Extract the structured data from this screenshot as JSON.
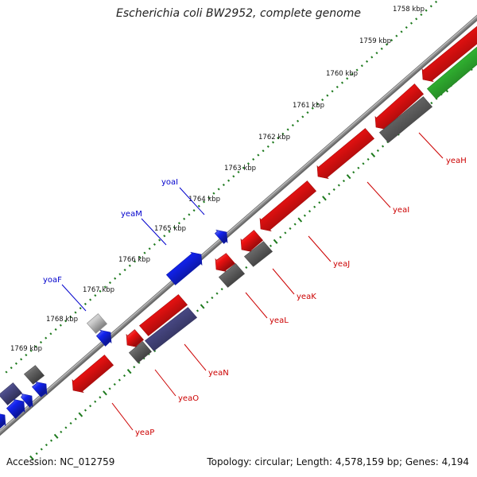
{
  "title": "Escherichia coli BW2952, complete genome",
  "accession": "Accession: NC_012759",
  "summary": "Topology: circular; Length: 4,578,159 bp; Genes: 4,194",
  "colors": {
    "backbone": "#8a8a8a",
    "ticks": "#1e7a1e",
    "red": "#ee1111",
    "grey": "#666666",
    "green": "#33bb33",
    "blue": "#1122ee",
    "navy": "#4a4a88",
    "lightgrey": "#cccccc",
    "label_red": "#cc0000",
    "label_blue": "#0000cc"
  },
  "ticks": [
    "1758 kbp",
    "1759 kbp",
    "1760 kbp",
    "1761 kbp",
    "1762 kbp",
    "1763 kbp",
    "1764 kbp",
    "1765 kbp",
    "1766 kbp",
    "1767 kbp",
    "1768 kbp",
    "1769 kbp"
  ],
  "genes": [
    {
      "name": "yeaH",
      "strand": "minus",
      "color": "red"
    },
    {
      "name": "yeaI",
      "strand": "minus",
      "color": "red"
    },
    {
      "name": "yeaJ",
      "strand": "minus",
      "color": "red"
    },
    {
      "name": "yeaK",
      "strand": "minus",
      "color": "red"
    },
    {
      "name": "yeaL",
      "strand": "minus",
      "color": "red"
    },
    {
      "name": "yeaN",
      "strand": "minus",
      "color": "navy"
    },
    {
      "name": "yeaO",
      "strand": "minus",
      "color": "red"
    },
    {
      "name": "yeaP",
      "strand": "minus",
      "color": "red"
    },
    {
      "name": "yoaI",
      "strand": "plus",
      "color": "blue"
    },
    {
      "name": "yeaM",
      "strand": "plus",
      "color": "blue"
    },
    {
      "name": "yoaF",
      "strand": "plus",
      "color": "blue"
    }
  ]
}
